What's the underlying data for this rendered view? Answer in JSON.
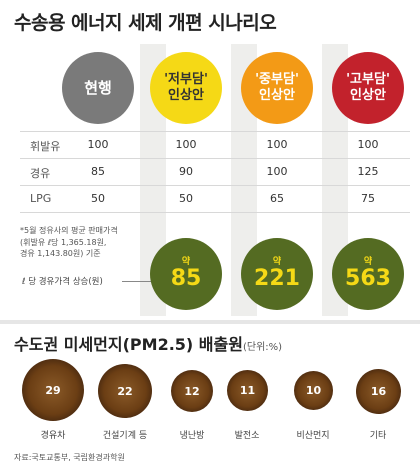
{
  "title": "수송용 에너지 세제 개편 시나리오",
  "scenarios": [
    {
      "line1": "현행",
      "line2": "",
      "color": "#7a7a7a"
    },
    {
      "line1": "'저부담'",
      "line2": "인상안",
      "color": "#f5d916"
    },
    {
      "line1": "'중부담'",
      "line2": "인상안",
      "color": "#f39a16"
    },
    {
      "line1": "'고부담'",
      "line2": "인상안",
      "color": "#c2222c"
    }
  ],
  "rows": [
    {
      "label": "휘발유",
      "values": [
        "100",
        "100",
        "100",
        "100"
      ]
    },
    {
      "label": "경유",
      "values": [
        "85",
        "90",
        "100",
        "125"
      ]
    },
    {
      "label": "LPG",
      "values": [
        "50",
        "50",
        "65",
        "75"
      ]
    }
  ],
  "note": {
    "line1": "*5월 정유사의 평균 판매가격",
    "line2": "(휘발유 ℓ당 1,365.18원,",
    "line3": "경유 1,143.80원) 기준"
  },
  "rise_label": "ℓ 당 경유가격 상승(원)",
  "rise": [
    {
      "prefix": "약",
      "value": "85"
    },
    {
      "prefix": "약",
      "value": "221"
    },
    {
      "prefix": "약",
      "value": "563"
    }
  ],
  "rise_color": "#546b22",
  "title2": "수도권 미세먼지(PM2.5) 배출원",
  "title2_unit": "(단위:%)",
  "sources": [
    {
      "label": "경유차",
      "value": "29"
    },
    {
      "label": "건설기계 등",
      "value": "22"
    },
    {
      "label": "냉난방",
      "value": "12"
    },
    {
      "label": "발전소",
      "value": "11"
    },
    {
      "label": "비산먼지",
      "value": "10"
    },
    {
      "label": "기타",
      "value": "16"
    }
  ],
  "source_note": "자료:국토교통부, 국립환경과학원"
}
